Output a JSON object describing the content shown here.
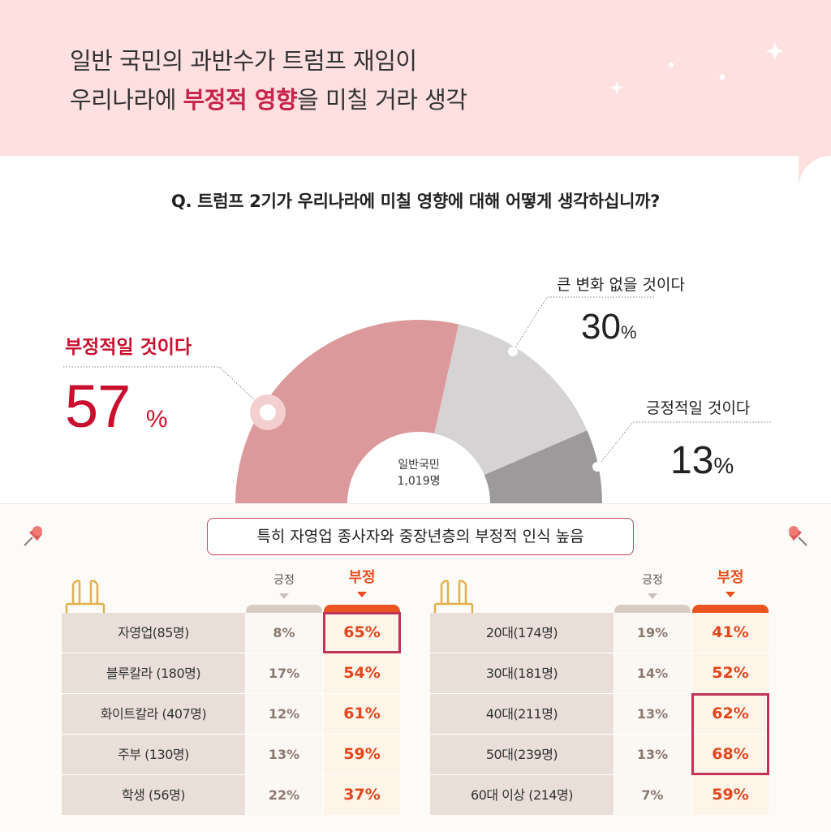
{
  "header": {
    "line1": "일반 국민의 과반수가 트럼프 재임이",
    "line2_pre": "우리나라에 ",
    "line2_em": "부정적 영향",
    "line2_post": "을 미칠 거라 생각"
  },
  "question": "Q. 트럼프 2기가 우리나라에 미칠 영향에 대해 어떻게 생각하십니까?",
  "colors": {
    "negative": "#dc999b",
    "neutral": "#d5d3d4",
    "positive": "#9c9a9b",
    "accent_red": "#c8102e",
    "accent_orange": "#e84d1c"
  },
  "chart_data": [
    {
      "type": "pie",
      "categories": [
        "부정적일 것이다",
        "큰 변화 없을 것이다",
        "긍정적일 것이다"
      ],
      "values": [
        57,
        30,
        13
      ],
      "unit": "%",
      "center_label": [
        "일반국민",
        "1,019명"
      ]
    },
    {
      "type": "table",
      "columns": [
        "긍정",
        "부정"
      ],
      "rows": [
        {
          "label": "자영업(85명)",
          "pos": "8%",
          "neg": "65%",
          "highlight": true
        },
        {
          "label": "블루칼라 (180명)",
          "pos": "17%",
          "neg": "54%",
          "highlight": false
        },
        {
          "label": "화이트칼라 (407명)",
          "pos": "12%",
          "neg": "61%",
          "highlight": false
        },
        {
          "label": "주부 (130명)",
          "pos": "13%",
          "neg": "59%",
          "highlight": false
        },
        {
          "label": "학생 (56명)",
          "pos": "22%",
          "neg": "37%",
          "highlight": false
        }
      ]
    },
    {
      "type": "table",
      "columns": [
        "긍정",
        "부정"
      ],
      "rows": [
        {
          "label": "20대(174명)",
          "pos": "19%",
          "neg": "41%",
          "highlight": false
        },
        {
          "label": "30대(181명)",
          "pos": "14%",
          "neg": "52%",
          "highlight": false
        },
        {
          "label": "40대(211명)",
          "pos": "13%",
          "neg": "62%",
          "highlight": true
        },
        {
          "label": "50대(239명)",
          "pos": "13%",
          "neg": "68%",
          "highlight": true
        },
        {
          "label": "60대 이상 (214명)",
          "pos": "7%",
          "neg": "59%",
          "highlight": false
        }
      ]
    }
  ],
  "labels": {
    "negative": {
      "label": "부정적일 것이다",
      "value": "57",
      "unit": "%"
    },
    "neutral": {
      "label": "큰 변화 없을 것이다",
      "value": "30",
      "unit": "%"
    },
    "positive": {
      "label": "긍정적일 것이다",
      "value": "13",
      "unit": "%"
    },
    "center_line1": "일반국민",
    "center_line2": "1,019명"
  },
  "subtitle": "특히 자영업 종사자와 중장년층의 부정적 인식 높음",
  "table_headers": {
    "pos": "긍정",
    "neg": "부정"
  },
  "icons": [
    "pushpin-icon",
    "binder-clip-icon",
    "sparkle-icon"
  ]
}
